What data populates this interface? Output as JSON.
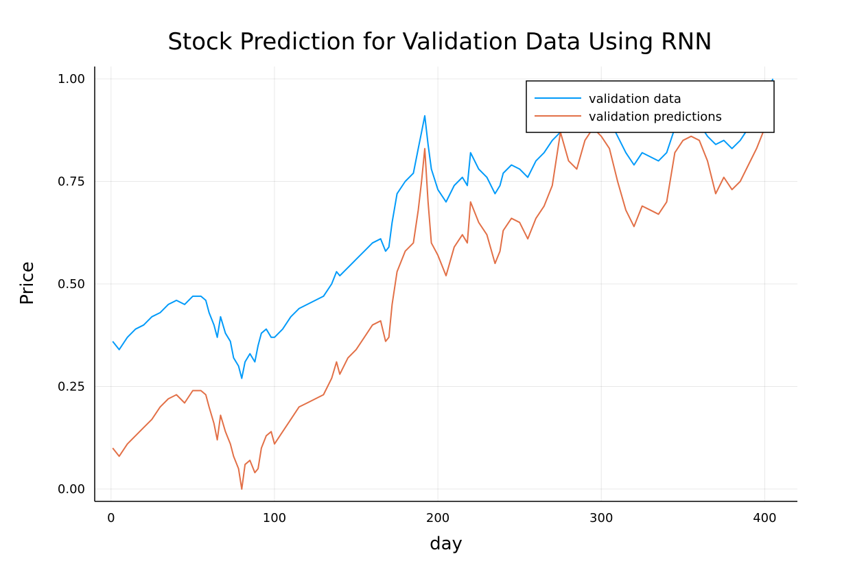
{
  "chart_data": {
    "type": "line",
    "title": "Stock Prediction for Validation Data Using RNN",
    "xlabel": "day",
    "ylabel": "Price",
    "xlim": [
      -10,
      420
    ],
    "ylim": [
      -0.03,
      1.03
    ],
    "xticks": [
      0,
      100,
      200,
      300,
      400
    ],
    "xtick_labels": [
      "0",
      "100",
      "200",
      "300",
      "400"
    ],
    "yticks": [
      0,
      0.25,
      0.5,
      0.75,
      1.0
    ],
    "ytick_labels": [
      "0.00",
      "0.25",
      "0.50",
      "0.75",
      "1.00"
    ],
    "grid": true,
    "legend_position": "top-right",
    "series": [
      {
        "name": "validation data",
        "color": "#009af9",
        "points": [
          [
            1,
            0.36
          ],
          [
            5,
            0.34
          ],
          [
            10,
            0.37
          ],
          [
            15,
            0.39
          ],
          [
            20,
            0.4
          ],
          [
            25,
            0.42
          ],
          [
            30,
            0.43
          ],
          [
            35,
            0.45
          ],
          [
            40,
            0.46
          ],
          [
            45,
            0.45
          ],
          [
            50,
            0.47
          ],
          [
            55,
            0.47
          ],
          [
            58,
            0.46
          ],
          [
            60,
            0.43
          ],
          [
            63,
            0.4
          ],
          [
            65,
            0.37
          ],
          [
            67,
            0.42
          ],
          [
            70,
            0.38
          ],
          [
            73,
            0.36
          ],
          [
            75,
            0.32
          ],
          [
            78,
            0.3
          ],
          [
            80,
            0.27
          ],
          [
            82,
            0.31
          ],
          [
            85,
            0.33
          ],
          [
            88,
            0.31
          ],
          [
            90,
            0.35
          ],
          [
            92,
            0.38
          ],
          [
            95,
            0.39
          ],
          [
            98,
            0.37
          ],
          [
            100,
            0.37
          ],
          [
            105,
            0.39
          ],
          [
            110,
            0.42
          ],
          [
            115,
            0.44
          ],
          [
            120,
            0.45
          ],
          [
            125,
            0.46
          ],
          [
            130,
            0.47
          ],
          [
            135,
            0.5
          ],
          [
            138,
            0.53
          ],
          [
            140,
            0.52
          ],
          [
            145,
            0.54
          ],
          [
            150,
            0.56
          ],
          [
            155,
            0.58
          ],
          [
            160,
            0.6
          ],
          [
            165,
            0.61
          ],
          [
            168,
            0.58
          ],
          [
            170,
            0.59
          ],
          [
            172,
            0.65
          ],
          [
            175,
            0.72
          ],
          [
            180,
            0.75
          ],
          [
            185,
            0.77
          ],
          [
            188,
            0.83
          ],
          [
            190,
            0.87
          ],
          [
            192,
            0.91
          ],
          [
            194,
            0.84
          ],
          [
            196,
            0.78
          ],
          [
            200,
            0.73
          ],
          [
            205,
            0.7
          ],
          [
            210,
            0.74
          ],
          [
            215,
            0.76
          ],
          [
            218,
            0.74
          ],
          [
            220,
            0.82
          ],
          [
            225,
            0.78
          ],
          [
            230,
            0.76
          ],
          [
            235,
            0.72
          ],
          [
            238,
            0.74
          ],
          [
            240,
            0.77
          ],
          [
            245,
            0.79
          ],
          [
            250,
            0.78
          ],
          [
            255,
            0.76
          ],
          [
            260,
            0.8
          ],
          [
            265,
            0.82
          ],
          [
            270,
            0.85
          ],
          [
            275,
            0.87
          ],
          [
            280,
            0.88
          ],
          [
            285,
            0.89
          ],
          [
            290,
            0.9
          ],
          [
            295,
            0.9
          ],
          [
            300,
            0.91
          ],
          [
            305,
            0.9
          ],
          [
            310,
            0.86
          ],
          [
            315,
            0.82
          ],
          [
            320,
            0.79
          ],
          [
            325,
            0.82
          ],
          [
            330,
            0.81
          ],
          [
            335,
            0.8
          ],
          [
            340,
            0.82
          ],
          [
            345,
            0.88
          ],
          [
            350,
            0.9
          ],
          [
            355,
            0.91
          ],
          [
            360,
            0.89
          ],
          [
            365,
            0.86
          ],
          [
            370,
            0.84
          ],
          [
            375,
            0.85
          ],
          [
            380,
            0.83
          ],
          [
            385,
            0.85
          ],
          [
            390,
            0.88
          ],
          [
            395,
            0.9
          ],
          [
            400,
            0.95
          ],
          [
            405,
            1.0
          ]
        ]
      },
      {
        "name": "validation predictions",
        "color": "#e26f46",
        "points": [
          [
            1,
            0.1
          ],
          [
            5,
            0.08
          ],
          [
            10,
            0.11
          ],
          [
            15,
            0.13
          ],
          [
            20,
            0.15
          ],
          [
            25,
            0.17
          ],
          [
            30,
            0.2
          ],
          [
            35,
            0.22
          ],
          [
            40,
            0.23
          ],
          [
            45,
            0.21
          ],
          [
            50,
            0.24
          ],
          [
            55,
            0.24
          ],
          [
            58,
            0.23
          ],
          [
            60,
            0.2
          ],
          [
            63,
            0.16
          ],
          [
            65,
            0.12
          ],
          [
            67,
            0.18
          ],
          [
            70,
            0.14
          ],
          [
            73,
            0.11
          ],
          [
            75,
            0.08
          ],
          [
            78,
            0.05
          ],
          [
            80,
            0.0
          ],
          [
            82,
            0.06
          ],
          [
            85,
            0.07
          ],
          [
            88,
            0.04
          ],
          [
            90,
            0.05
          ],
          [
            92,
            0.1
          ],
          [
            95,
            0.13
          ],
          [
            98,
            0.14
          ],
          [
            100,
            0.11
          ],
          [
            105,
            0.14
          ],
          [
            110,
            0.17
          ],
          [
            115,
            0.2
          ],
          [
            120,
            0.21
          ],
          [
            125,
            0.22
          ],
          [
            130,
            0.23
          ],
          [
            135,
            0.27
          ],
          [
            138,
            0.31
          ],
          [
            140,
            0.28
          ],
          [
            145,
            0.32
          ],
          [
            150,
            0.34
          ],
          [
            155,
            0.37
          ],
          [
            160,
            0.4
          ],
          [
            165,
            0.41
          ],
          [
            168,
            0.36
          ],
          [
            170,
            0.37
          ],
          [
            172,
            0.45
          ],
          [
            175,
            0.53
          ],
          [
            180,
            0.58
          ],
          [
            185,
            0.6
          ],
          [
            188,
            0.68
          ],
          [
            190,
            0.75
          ],
          [
            192,
            0.83
          ],
          [
            194,
            0.7
          ],
          [
            196,
            0.6
          ],
          [
            200,
            0.57
          ],
          [
            205,
            0.52
          ],
          [
            210,
            0.59
          ],
          [
            215,
            0.62
          ],
          [
            218,
            0.6
          ],
          [
            220,
            0.7
          ],
          [
            225,
            0.65
          ],
          [
            230,
            0.62
          ],
          [
            235,
            0.55
          ],
          [
            238,
            0.58
          ],
          [
            240,
            0.63
          ],
          [
            245,
            0.66
          ],
          [
            250,
            0.65
          ],
          [
            255,
            0.61
          ],
          [
            260,
            0.66
          ],
          [
            265,
            0.69
          ],
          [
            270,
            0.74
          ],
          [
            275,
            0.87
          ],
          [
            280,
            0.8
          ],
          [
            285,
            0.78
          ],
          [
            290,
            0.85
          ],
          [
            295,
            0.88
          ],
          [
            300,
            0.86
          ],
          [
            305,
            0.83
          ],
          [
            310,
            0.75
          ],
          [
            315,
            0.68
          ],
          [
            320,
            0.64
          ],
          [
            325,
            0.69
          ],
          [
            330,
            0.68
          ],
          [
            335,
            0.67
          ],
          [
            340,
            0.7
          ],
          [
            345,
            0.82
          ],
          [
            350,
            0.85
          ],
          [
            355,
            0.86
          ],
          [
            360,
            0.85
          ],
          [
            365,
            0.8
          ],
          [
            370,
            0.72
          ],
          [
            375,
            0.76
          ],
          [
            380,
            0.73
          ],
          [
            385,
            0.75
          ],
          [
            390,
            0.79
          ],
          [
            395,
            0.83
          ],
          [
            400,
            0.88
          ],
          [
            405,
            0.99
          ]
        ]
      }
    ]
  }
}
